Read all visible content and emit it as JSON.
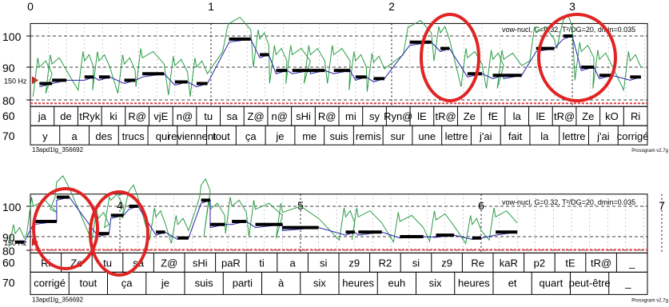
{
  "chart_data": {
    "type": "line",
    "title": "",
    "xlabel": "",
    "ylabel": "",
    "rows": [
      {
        "time_ticks": [
          "0",
          "1",
          "2",
          "3"
        ],
        "ylim": [
          78,
          104
        ],
        "y_ticks": [
          "100",
          "90",
          "80"
        ],
        "left_annotation": "150 Hz",
        "params_label": "vow-nucl, G=0.32, T²/DG=20, dmin=0.035",
        "footer_left": "13apd1lg_356692",
        "footer_right": "Prosogram v2.7g",
        "label_60": "60",
        "label_70": "70",
        "syllables": [
          "ja",
          "de",
          "tRyk",
          "ki",
          "R@",
          "vjE",
          "n@",
          "tu",
          "sa",
          "Z@",
          "n@",
          "sHi",
          "R@",
          "mi",
          "sy",
          "Ryn@",
          "lE",
          "tR@",
          "Ze",
          "fE",
          "la",
          "lE",
          "tR@",
          "Ze",
          "kO",
          "Ri"
        ],
        "words": [
          "y",
          "a",
          "des",
          "trucs",
          "qui",
          "reviennent",
          "tout",
          "ça",
          "je",
          "me",
          "suis",
          "remis",
          "sur",
          "une",
          "lettre",
          "j'ai",
          "fait",
          "la",
          "lettre",
          "j'ai",
          "corrigé"
        ],
        "pitch_plateaus_st": [
          {
            "t0": 0.05,
            "t1": 0.12,
            "v": 85
          },
          {
            "t0": 0.12,
            "t1": 0.2,
            "v": 86
          },
          {
            "t0": 0.3,
            "t1": 0.35,
            "v": 87
          },
          {
            "t0": 0.38,
            "t1": 0.44,
            "v": 87
          },
          {
            "t0": 0.52,
            "t1": 0.58,
            "v": 86
          },
          {
            "t0": 0.62,
            "t1": 0.74,
            "v": 88
          },
          {
            "t0": 0.8,
            "t1": 0.87,
            "v": 85.5
          },
          {
            "t0": 0.92,
            "t1": 0.98,
            "v": 85
          },
          {
            "t0": 1.1,
            "t1": 1.22,
            "v": 99
          },
          {
            "t0": 1.27,
            "t1": 1.32,
            "v": 94
          },
          {
            "t0": 1.36,
            "t1": 1.42,
            "v": 89
          },
          {
            "t0": 1.45,
            "t1": 1.55,
            "v": 89
          },
          {
            "t0": 1.55,
            "t1": 1.63,
            "v": 89
          },
          {
            "t0": 1.68,
            "t1": 1.77,
            "v": 89
          },
          {
            "t0": 1.8,
            "t1": 1.86,
            "v": 87
          },
          {
            "t0": 1.9,
            "t1": 1.96,
            "v": 86.5
          },
          {
            "t0": 2.1,
            "t1": 2.22,
            "v": 98
          },
          {
            "t0": 2.27,
            "t1": 2.32,
            "v": 96
          },
          {
            "t0": 2.42,
            "t1": 2.5,
            "v": 88
          },
          {
            "t0": 2.56,
            "t1": 2.62,
            "v": 87.5
          },
          {
            "t0": 2.62,
            "t1": 2.72,
            "v": 87.5
          },
          {
            "t0": 2.8,
            "t1": 2.9,
            "v": 96
          },
          {
            "t0": 2.95,
            "t1": 3.0,
            "v": 100
          },
          {
            "t0": 3.05,
            "t1": 3.12,
            "v": 90
          },
          {
            "t0": 3.15,
            "t1": 3.22,
            "v": 87.5
          },
          {
            "t0": 3.32,
            "t1": 3.38,
            "v": 87
          }
        ]
      },
      {
        "time_ticks": [
          "4",
          "5",
          "6",
          "7"
        ],
        "ylim": [
          78,
          104
        ],
        "y_ticks": [
          "100",
          "90",
          "80"
        ],
        "left_annotation": "150 Hz",
        "params_label": "vow-nucl, G=0.32, T²/DG=20, dmin=0.035",
        "footer_left": "13apd1lg_356692",
        "footer_right": "Prosogram v2.7g",
        "label_60": "60",
        "label_70": "70",
        "syllables": [
          "Ri",
          "Ze",
          "tu",
          "sa",
          "Z@",
          "sHi",
          "paR",
          "ti",
          "a",
          "si",
          "z9",
          "R2",
          "si",
          "z9",
          "Re",
          "kaR",
          "p2",
          "tE",
          "tR@",
          "_"
        ],
        "words": [
          "corrigé",
          "tout",
          "ça",
          "je",
          "suis",
          "parti",
          "à",
          "six",
          "heures",
          "euh",
          "six",
          "heures",
          "et",
          "quart",
          "peut-être",
          "_"
        ],
        "pitch_plateaus_st": [
          {
            "t0": 3.42,
            "t1": 3.47,
            "v": 86
          },
          {
            "t0": 3.52,
            "t1": 3.65,
            "v": 95
          },
          {
            "t0": 3.65,
            "t1": 3.72,
            "v": 103
          },
          {
            "t0": 3.88,
            "t1": 3.94,
            "v": 91
          },
          {
            "t0": 3.95,
            "t1": 4.02,
            "v": 97
          },
          {
            "t0": 4.05,
            "t1": 4.1,
            "v": 100
          },
          {
            "t0": 4.2,
            "t1": 4.25,
            "v": 91.5
          },
          {
            "t0": 4.32,
            "t1": 4.38,
            "v": 89
          },
          {
            "t0": 4.45,
            "t1": 4.5,
            "v": 102
          },
          {
            "t0": 4.5,
            "t1": 4.58,
            "v": 94
          },
          {
            "t0": 4.62,
            "t1": 4.7,
            "v": 95
          },
          {
            "t0": 4.75,
            "t1": 4.9,
            "v": 94
          },
          {
            "t0": 4.9,
            "t1": 5.1,
            "v": 93
          },
          {
            "t0": 5.25,
            "t1": 5.3,
            "v": 91.5
          },
          {
            "t0": 5.32,
            "t1": 5.45,
            "v": 91.5
          },
          {
            "t0": 5.55,
            "t1": 5.68,
            "v": 90
          },
          {
            "t0": 5.75,
            "t1": 5.85,
            "v": 90.5
          },
          {
            "t0": 5.95,
            "t1": 6.0,
            "v": 89
          },
          {
            "t0": 6.08,
            "t1": 6.2,
            "v": 91.5
          }
        ]
      }
    ]
  }
}
